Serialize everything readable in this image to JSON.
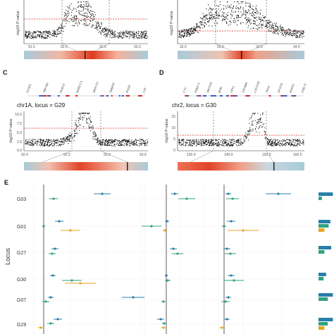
{
  "panels": {
    "top_left": {
      "ylabel": "-log10 P-value",
      "xticks": [
        "91.5",
        "92.0",
        "92.5",
        "93.0"
      ]
    },
    "top_right": {
      "ylabel": "-log10 P-value",
      "xticks": [
        "32.5",
        "33.0",
        "33.5",
        "34.0"
      ]
    },
    "C": {
      "label": "C",
      "title": "chr1A, locus = G29",
      "ylabel": "-log10 P-value",
      "yticks": [
        "0.0",
        "2.5",
        "5.0",
        "7.5",
        "10.0"
      ],
      "xticks": [
        "92.0",
        "92.5",
        "93.0",
        "93.5"
      ],
      "genes": [
        "STOP3",
        "TBP-like",
        "DnaK11",
        "WAB2-C3",
        "WRKY17",
        "TMBP67",
        "PHOH",
        "CAT"
      ]
    },
    "D": {
      "label": "D",
      "title": "chr2, locus = G30",
      "ylabel": "-log10 P-value",
      "yticks": [
        "0",
        "5",
        "10",
        "15"
      ],
      "xticks": [
        "130.0",
        "140.0",
        "150.0",
        "160.0"
      ],
      "genes": [
        "CYC",
        "PRMT-3",
        "ABCG15",
        "BPM",
        "UPF1",
        "TAF2BM",
        "LOC4728",
        "TRAX",
        "GF2079",
        "NAGS1",
        "OSB-71"
      ]
    },
    "E": {
      "label": "E",
      "axis_label": "Locus",
      "loci": [
        "G03",
        "G01",
        "G27",
        "G30",
        "G07",
        "G29"
      ]
    }
  },
  "colors": {
    "blue": "#2a7fa8",
    "green": "#2fa37f",
    "orange": "#e5a623",
    "threshold": "#d62728"
  }
}
